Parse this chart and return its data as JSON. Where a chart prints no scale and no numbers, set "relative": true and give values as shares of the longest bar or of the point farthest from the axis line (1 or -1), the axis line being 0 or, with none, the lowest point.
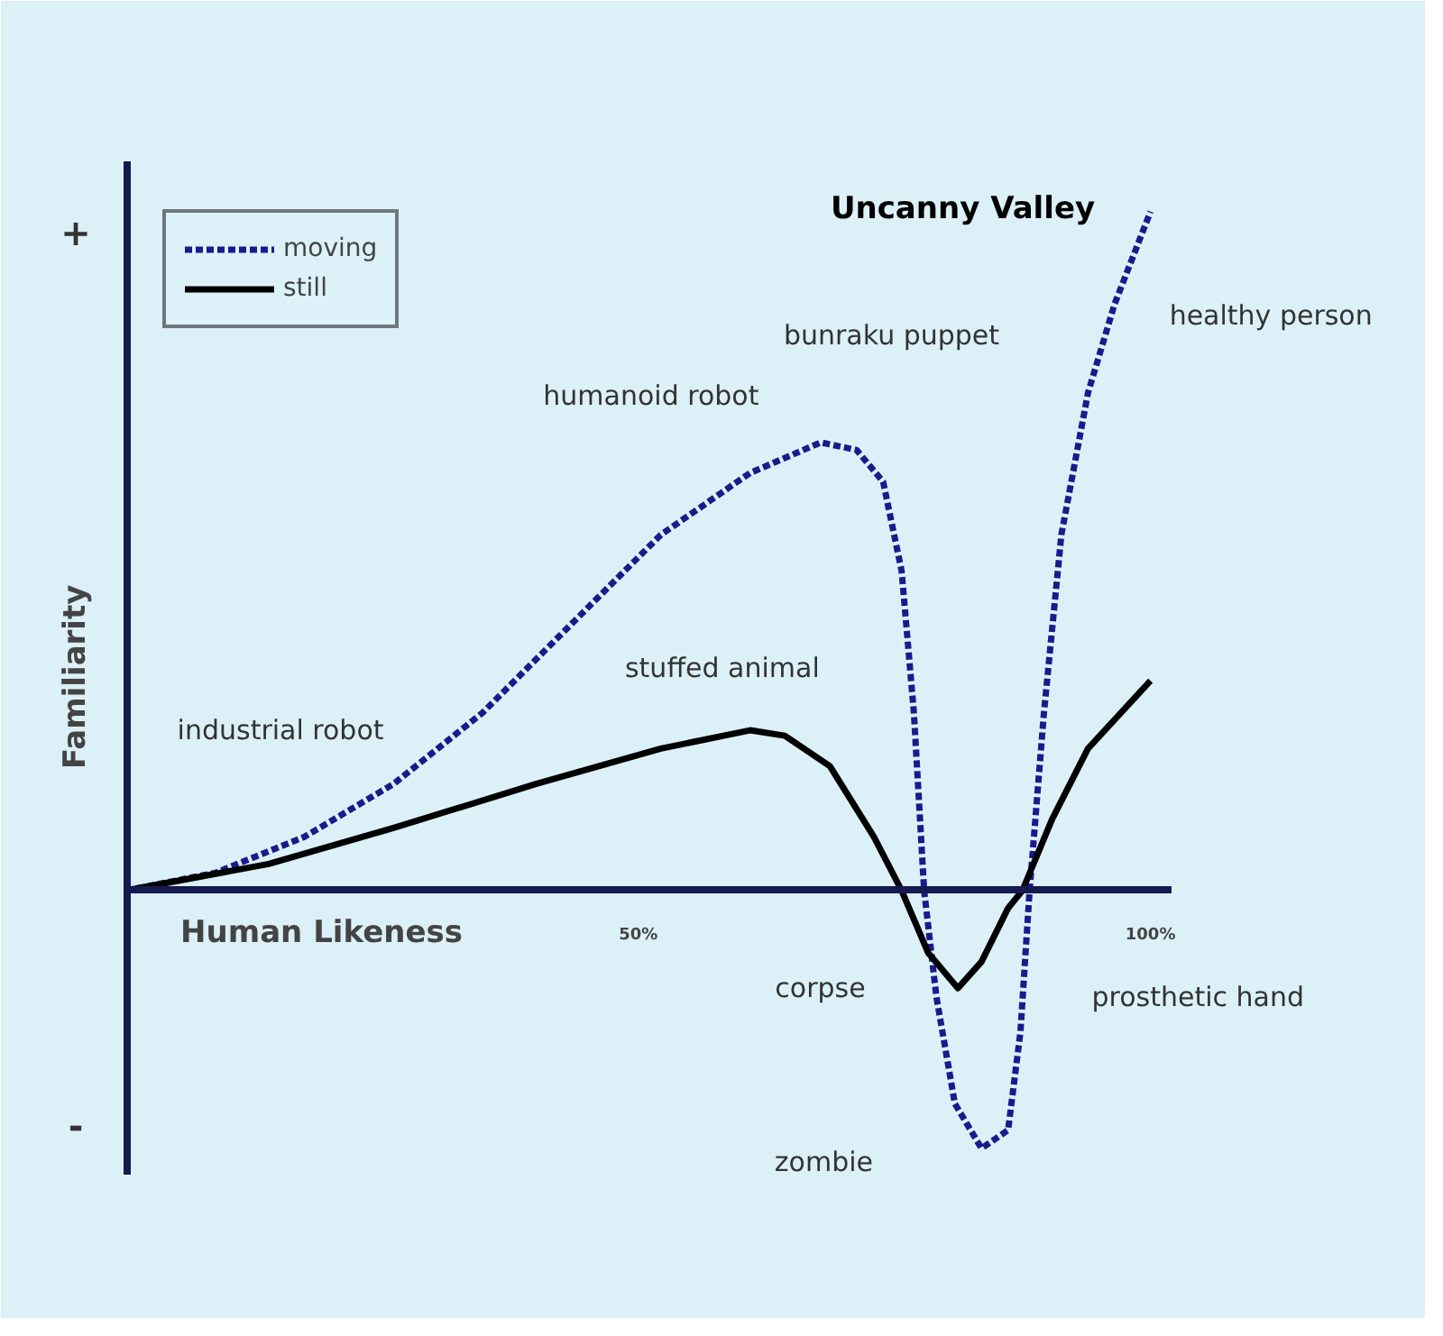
{
  "chart_data": {
    "type": "line",
    "relative": true,
    "xlabel": "Human Likeness",
    "ylabel": "Familiarity",
    "xlim": [
      0,
      102
    ],
    "xticks": [
      {
        "value": 50,
        "label": "50%"
      },
      {
        "value": 100,
        "label": "100%"
      }
    ],
    "legend": "top left",
    "grid": false,
    "series": [
      {
        "name": "moving",
        "color": "#1a1a8c",
        "line_style": "dashed",
        "x": [
          0,
          8.7,
          17.4,
          26.1,
          34.8,
          43.5,
          52.2,
          60.9,
          67.8,
          71.3,
          73.9,
          75.7,
          76.9,
          77.9,
          79.1,
          80.9,
          83.5,
          86.1,
          87.3,
          88.2,
          89.6,
          91.3,
          93.9,
          96.5,
          100
        ],
        "values": [
          0,
          0.026,
          0.079,
          0.157,
          0.262,
          0.393,
          0.524,
          0.615,
          0.66,
          0.649,
          0.602,
          0.471,
          0.262,
          0,
          -0.157,
          -0.314,
          -0.38,
          -0.353,
          -0.209,
          0,
          0.262,
          0.524,
          0.733,
          0.864,
          1
        ]
      },
      {
        "name": "still",
        "color": "#000000",
        "line_style": "solid",
        "x": [
          0,
          13.9,
          26.1,
          40,
          52.2,
          60.9,
          64.3,
          68.7,
          73,
          75.7,
          78.3,
          81.2,
          83.5,
          86.1,
          87.5,
          90.4,
          93.9,
          100
        ],
        "values": [
          0,
          0.039,
          0.092,
          0.157,
          0.209,
          0.236,
          0.228,
          0.183,
          0.079,
          0,
          -0.092,
          -0.144,
          -0.105,
          -0.026,
          0,
          0.105,
          0.209,
          0.309
        ]
      }
    ],
    "annotations": [
      "Uncanny Valley",
      "industrial robot",
      "humanoid robot",
      "stuffed animal",
      "bunraku puppet",
      "healthy person",
      "corpse",
      "prosthetic hand",
      "zombie",
      "+",
      "-"
    ]
  }
}
